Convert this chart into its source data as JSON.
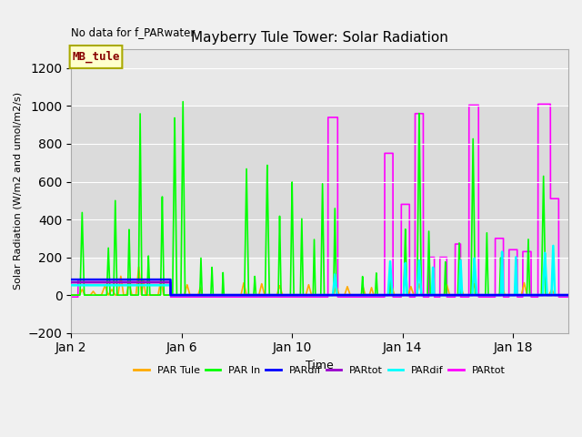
{
  "title": "Mayberry Tule Tower: Solar Radiation",
  "xlabel": "Time",
  "ylabel": "Solar Radiation (W/m2 and umol/m2/s)",
  "annotation": "No data for f_PARwater",
  "legend_label": "MB_tule",
  "ylim": [
    -200,
    1300
  ],
  "yticks": [
    -200,
    0,
    200,
    400,
    600,
    800,
    1000,
    1200
  ],
  "xlim": [
    0,
    18
  ],
  "xtick_vals": [
    0,
    4,
    8,
    12,
    16
  ],
  "xtick_labels": [
    "Jan 2",
    "Jan 6",
    "Jan 10",
    "Jan 14",
    "Jan 18"
  ],
  "bg_color": "#e8e8e8",
  "legend_entries": [
    "PAR Tule",
    "PAR In",
    "PARdif",
    "PARtot",
    "PARdif",
    "PARtot"
  ],
  "legend_colors": [
    "#ffaa00",
    "#00ff00",
    "#0000ff",
    "#9900cc",
    "#00ffff",
    "#ff00ff"
  ],
  "mb_tule_box_color": "#ffffcc",
  "mb_tule_edge_color": "#aaaa00",
  "mb_tule_text_color": "#880000",
  "gray_band_ymin": 200,
  "gray_band_ymax": 1000
}
